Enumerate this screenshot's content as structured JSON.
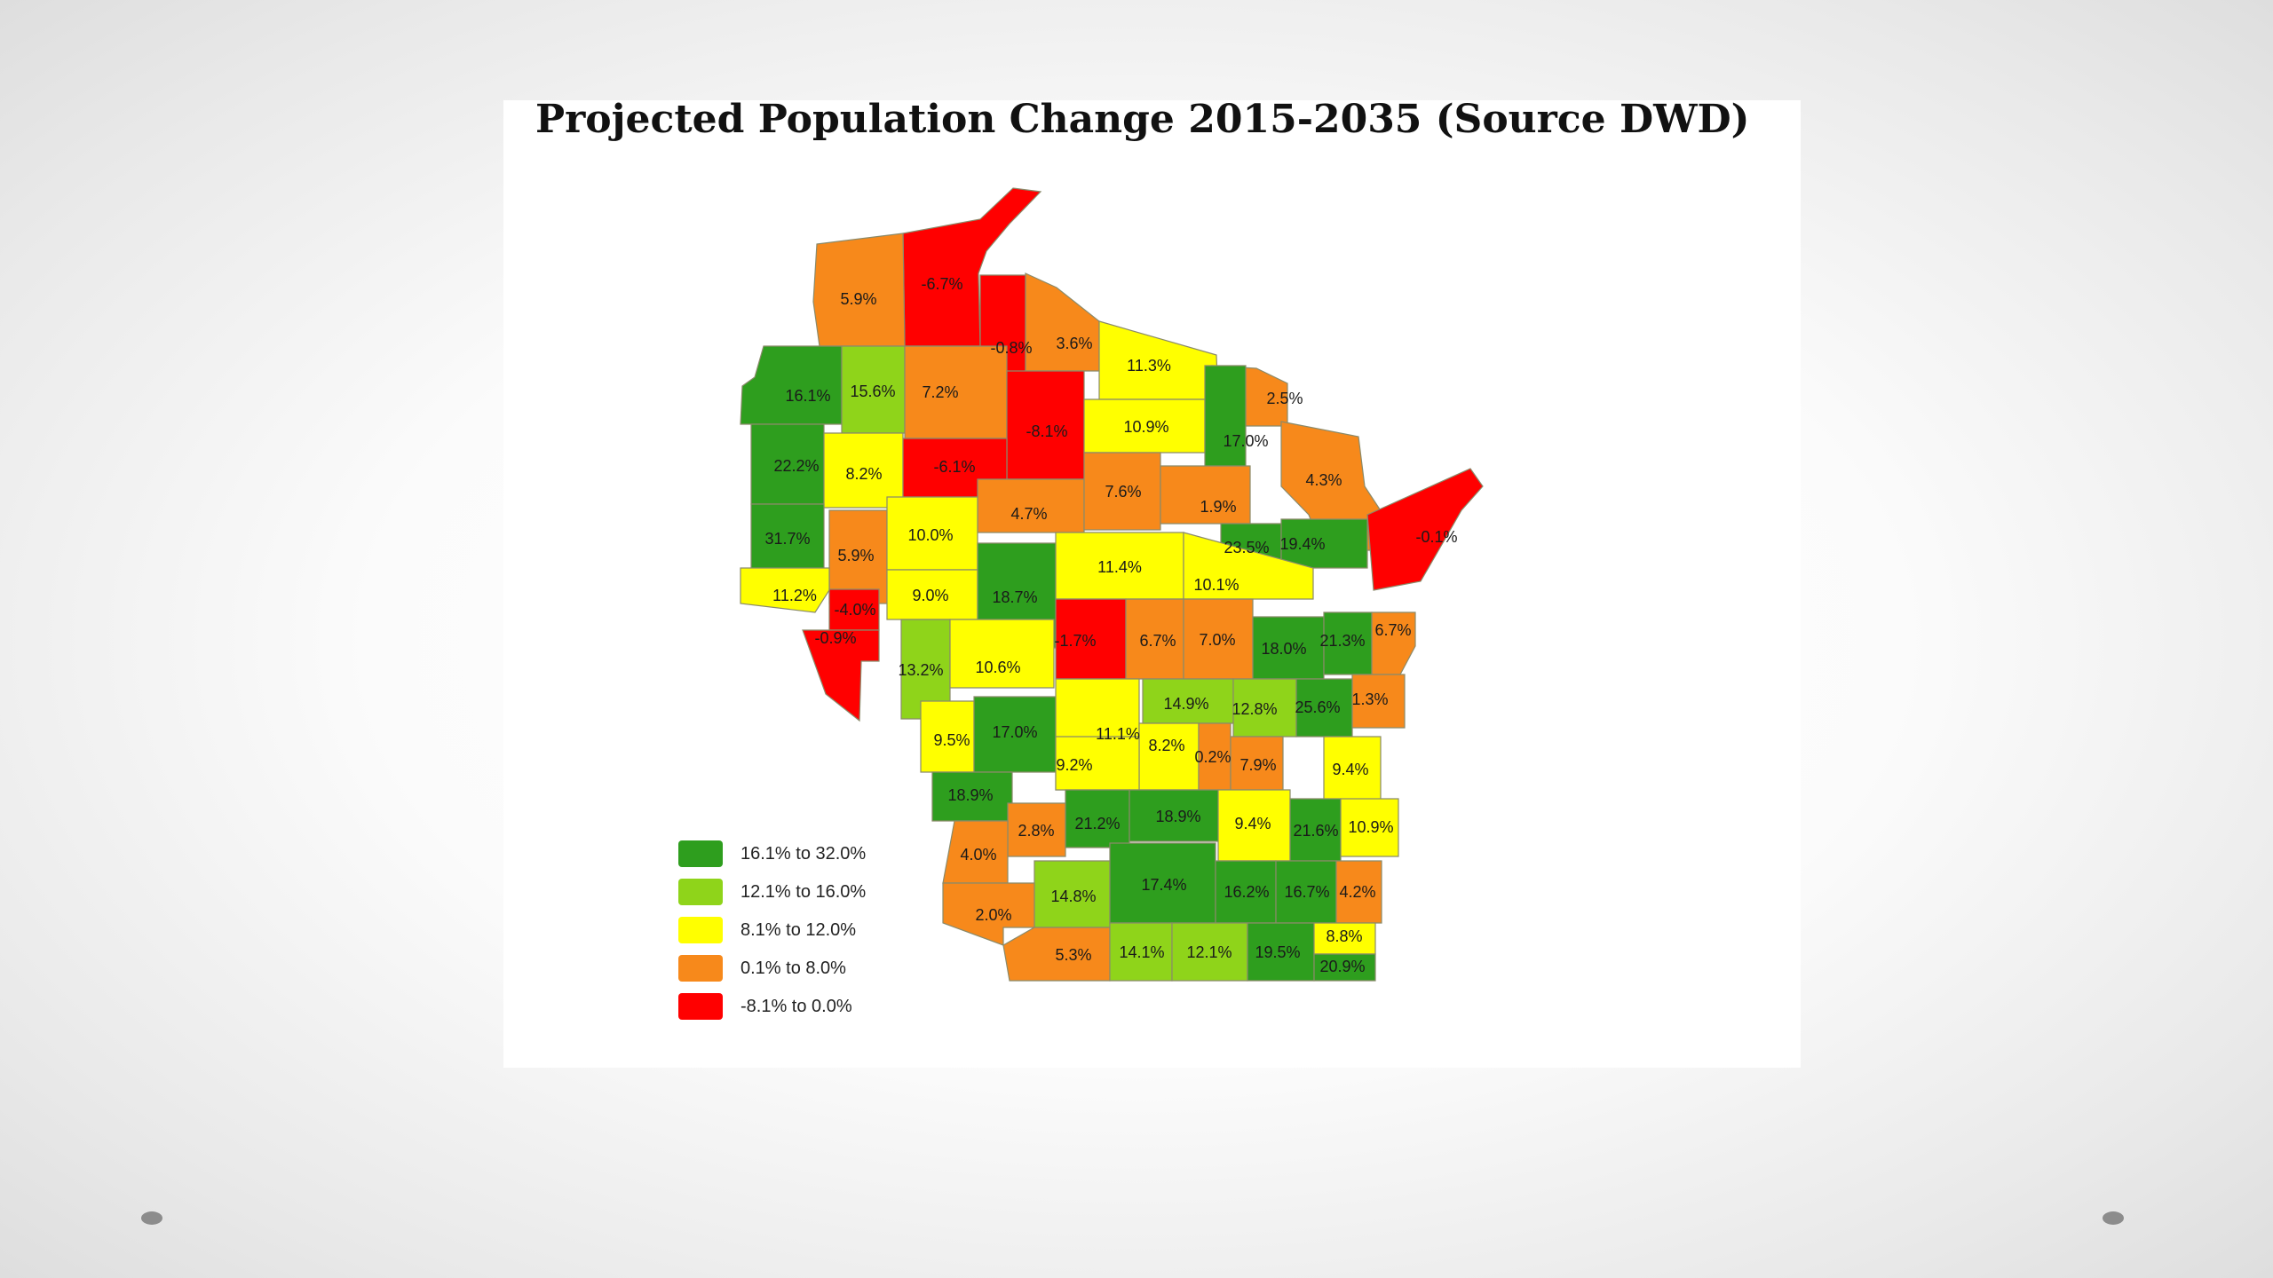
{
  "title": "Projected Population Change 2015-2035 (Source DWD)",
  "legend": [
    {
      "label": "16.1% to 32.0%",
      "color": "#2e9e1e"
    },
    {
      "label": "12.1% to 16.0%",
      "color": "#8fd41a"
    },
    {
      "label": "8.1% to 12.0%",
      "color": "#ffff00"
    },
    {
      "label": "0.1% to 8.0%",
      "color": "#f7891b"
    },
    {
      "label": "-8.1% to 0.0%",
      "color": "#ff0000"
    }
  ],
  "counties": [
    {
      "label": "-6.7%",
      "class": 4
    },
    {
      "label": "5.9%",
      "class": 3
    },
    {
      "label": "-0.8%",
      "class": 4
    },
    {
      "label": "3.6%",
      "class": 3
    },
    {
      "label": "11.3%",
      "class": 2
    },
    {
      "label": "2.5%",
      "class": 3
    },
    {
      "label": "16.1%",
      "class": 0
    },
    {
      "label": "15.6%",
      "class": 1
    },
    {
      "label": "7.2%",
      "class": 3
    },
    {
      "label": "-8.1%",
      "class": 4
    },
    {
      "label": "10.9%",
      "class": 2
    },
    {
      "label": "17.0%",
      "class": 0
    },
    {
      "label": "4.3%",
      "class": 3
    },
    {
      "label": "22.2%",
      "class": 0
    },
    {
      "label": "8.2%",
      "class": 2
    },
    {
      "label": "-6.1%",
      "class": 4
    },
    {
      "label": "4.7%",
      "class": 3
    },
    {
      "label": "7.6%",
      "class": 3
    },
    {
      "label": "1.9%",
      "class": 3
    },
    {
      "label": "31.7%",
      "class": 0
    },
    {
      "label": "5.9%",
      "class": 3
    },
    {
      "label": "10.0%",
      "class": 2
    },
    {
      "label": "-0.1%",
      "class": 4
    },
    {
      "label": "23.5%",
      "class": 0
    },
    {
      "label": "19.4%",
      "class": 0
    },
    {
      "label": "11.2%",
      "class": 2
    },
    {
      "label": "-4.0%",
      "class": 4
    },
    {
      "label": "9.0%",
      "class": 2
    },
    {
      "label": "18.7%",
      "class": 0
    },
    {
      "label": "11.4%",
      "class": 2
    },
    {
      "label": "10.1%",
      "class": 2
    },
    {
      "label": "-0.9%",
      "class": 4
    },
    {
      "label": "-1.7%",
      "class": 4
    },
    {
      "label": "6.7%",
      "class": 3
    },
    {
      "label": "7.0%",
      "class": 3
    },
    {
      "label": "18.0%",
      "class": 0
    },
    {
      "label": "21.3%",
      "class": 0
    },
    {
      "label": "6.7%",
      "class": 3
    },
    {
      "label": "13.2%",
      "class": 1
    },
    {
      "label": "10.6%",
      "class": 2
    },
    {
      "label": "14.9%",
      "class": 1
    },
    {
      "label": "12.8%",
      "class": 1
    },
    {
      "label": "25.6%",
      "class": 0
    },
    {
      "label": "1.3%",
      "class": 3
    },
    {
      "label": "9.5%",
      "class": 2
    },
    {
      "label": "17.0%",
      "class": 0
    },
    {
      "label": "11.1%",
      "class": 2
    },
    {
      "label": "8.2%",
      "class": 2
    },
    {
      "label": "0.2%",
      "class": 3
    },
    {
      "label": "7.9%",
      "class": 3
    },
    {
      "label": "9.4%",
      "class": 2
    },
    {
      "label": "9.2%",
      "class": 2
    },
    {
      "label": "18.9%",
      "class": 0
    },
    {
      "label": "2.8%",
      "class": 3
    },
    {
      "label": "21.2%",
      "class": 0
    },
    {
      "label": "18.9%",
      "class": 0
    },
    {
      "label": "9.4%",
      "class": 2
    },
    {
      "label": "21.6%",
      "class": 0
    },
    {
      "label": "10.9%",
      "class": 2
    },
    {
      "label": "4.0%",
      "class": 3
    },
    {
      "label": "14.8%",
      "class": 1
    },
    {
      "label": "17.4%",
      "class": 0
    },
    {
      "label": "16.2%",
      "class": 0
    },
    {
      "label": "16.7%",
      "class": 0
    },
    {
      "label": "4.2%",
      "class": 3
    },
    {
      "label": "2.0%",
      "class": 3
    },
    {
      "label": "5.3%",
      "class": 3
    },
    {
      "label": "14.1%",
      "class": 1
    },
    {
      "label": "12.1%",
      "class": 1
    },
    {
      "label": "19.5%",
      "class": 0
    },
    {
      "label": "8.8%",
      "class": 2
    },
    {
      "label": "20.9%",
      "class": 0
    }
  ]
}
